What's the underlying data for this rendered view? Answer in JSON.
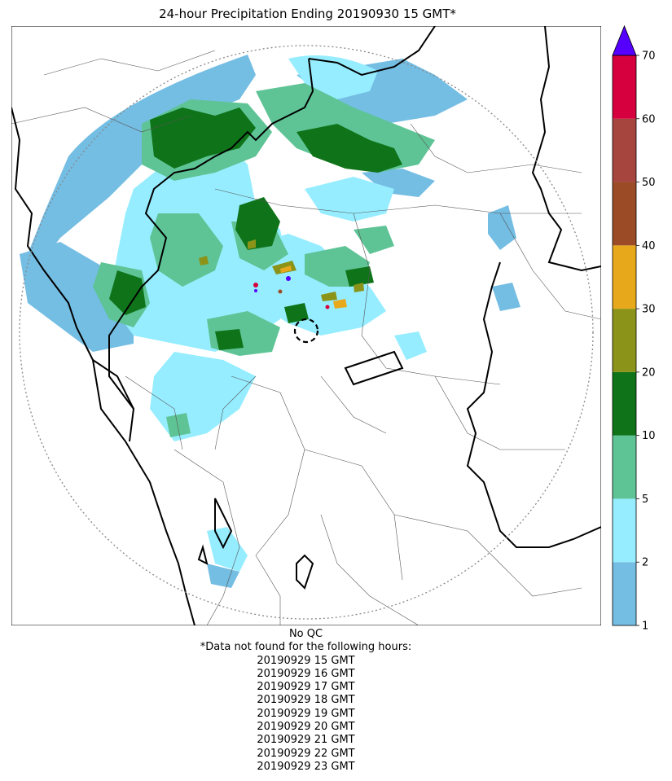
{
  "title": "24-hour Precipitation Ending 20190930 15 GMT*",
  "colorbar": {
    "tick_labels": [
      "1",
      "2",
      "5",
      "10",
      "20",
      "30",
      "40",
      "50",
      "60",
      "70"
    ],
    "colors": [
      "#74bde3",
      "#96edff",
      "#5ec496",
      "#0f7419",
      "#8b9419",
      "#e7a91b",
      "#9b4c26",
      "#a6453e",
      "#d5003d"
    ],
    "extend_color": "#5500ff"
  },
  "map_colors": {
    "background": "#ffffff",
    "coast": "#000000",
    "state_borders": "#000000",
    "district_borders": "#555555",
    "radar_range": "#888888"
  },
  "notes": {
    "qc": "No QC",
    "missing_header": "*Data not found for the following hours:",
    "missing_hours": [
      "20190929 15 GMT",
      "20190929 16 GMT",
      "20190929 17 GMT",
      "20190929 18 GMT",
      "20190929 19 GMT",
      "20190929 20 GMT",
      "20190929 21 GMT",
      "20190929 22 GMT",
      "20190929 23 GMT"
    ]
  }
}
